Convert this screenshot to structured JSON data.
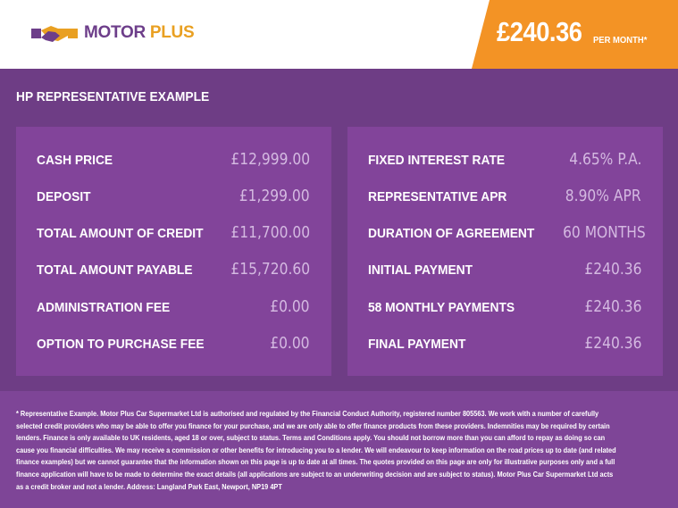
{
  "brand": {
    "name_part1": "MOTOR",
    "name_part2": "PLUS",
    "colors": {
      "purple": "#6d3e8a",
      "orange": "#f39325",
      "gold": "#e9a022"
    }
  },
  "header": {
    "monthly_price": "£240.36",
    "per_month": "PER MONTH*"
  },
  "section_title": "HP REPRESENTATIVE EXAMPLE",
  "left_rows": [
    {
      "label": "CASH PRICE",
      "value": "£12,999.00"
    },
    {
      "label": "DEPOSIT",
      "value": "£1,299.00"
    },
    {
      "label": "TOTAL AMOUNT OF CREDIT",
      "value": "£11,700.00"
    },
    {
      "label": "TOTAL AMOUNT PAYABLE",
      "value": "£15,720.60"
    },
    {
      "label": "ADMINISTRATION FEE",
      "value": "£0.00"
    },
    {
      "label": "OPTION TO PURCHASE FEE",
      "value": "£0.00"
    }
  ],
  "right_rows": [
    {
      "label": "FIXED INTEREST RATE",
      "value": "4.65% P.A."
    },
    {
      "label": "REPRESENTATIVE APR",
      "value": "8.90% APR"
    },
    {
      "label": "DURATION OF AGREEMENT",
      "value": "60 MONTHS"
    },
    {
      "label": "INITIAL PAYMENT",
      "value": "£240.36"
    },
    {
      "label": "58 MONTHLY PAYMENTS",
      "value": "£240.36"
    },
    {
      "label": "FINAL PAYMENT",
      "value": "£240.36"
    }
  ],
  "disclaimer": "* Representative Example. Motor Plus Car Supermarket Ltd is authorised and regulated by the Financial Conduct Authority, registered number 805563. We work with a number of carefully selected credit providers who may be able to offer you finance for your purchase, and we are only able to offer finance products from these providers. Indemnities may be required by certain lenders. Finance is only available to UK residents, aged 18 or over, subject to status. Terms and Conditions apply. You should not borrow more than you can afford to repay as doing so can cause you financial difficulties. We may receive a commission or other benefits for introducing you to a lender. We will endeavour to keep information on the road prices up to date (and related finance examples) but we cannot guarantee that the information shown on this page is up to date at all times. The quotes provided on this page are only for illustrative purposes only and a full finance application will have to be made to determine the exact details (all applications are subject to an underwriting decision and are subject to status). Motor Plus Car Supermarket Ltd acts as a credit broker and not a lender. Address: Langland Park East, Newport, NP19 4PT"
}
